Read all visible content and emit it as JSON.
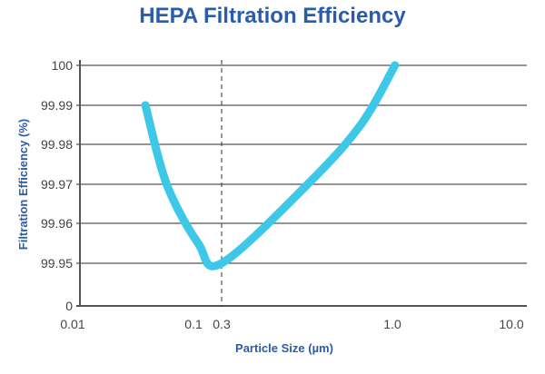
{
  "chart_data": {
    "type": "line",
    "title": "HEPA Filtration Efficiency",
    "xlabel": "Particle Size (µm)",
    "ylabel": "Filtration Efficiency (%)",
    "x_ticks": [
      "0.01",
      "0.1",
      "0.3",
      "1.0",
      "10.0"
    ],
    "y_ticks": [
      "0",
      "99.95",
      "99.96",
      "99.97",
      "99.98",
      "99.99",
      "100"
    ],
    "x_scale": "log",
    "grid": "horizontal",
    "reference_line": {
      "x": 0.3,
      "style": "dashed"
    },
    "series": [
      {
        "color": "#3ec8e8",
        "points": [
          [
            0.04,
            99.99
          ],
          [
            0.06,
            99.97
          ],
          [
            0.12,
            99.955
          ],
          [
            0.3,
            99.95
          ],
          [
            0.55,
            99.97
          ],
          [
            0.8,
            99.985
          ],
          [
            1.05,
            100
          ]
        ]
      }
    ]
  }
}
